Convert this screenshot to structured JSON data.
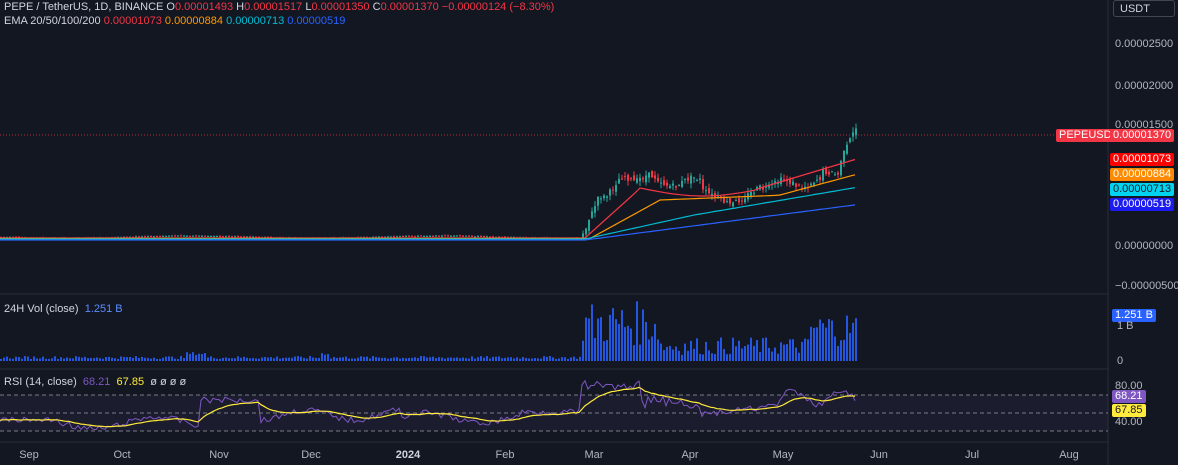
{
  "header": {
    "symbol": "PEPE / TetherUS, 1D, BINANCE",
    "o_label": "O",
    "o_value": "0.00001493",
    "h_label": "H",
    "h_value": "0.00001517",
    "l_label": "L",
    "l_value": "0.00001350",
    "c_label": "C",
    "c_value": "0.00001370",
    "change": "−0.00000124 (−8.30%)",
    "ema_label": "EMA 20/50/100/200",
    "ema20": "0.00001073",
    "ema50": "0.00000884",
    "ema100": "0.00000713",
    "ema200": "0.00000519"
  },
  "currency_button": "USDT",
  "price_axis": {
    "ticks": [
      "0.00002500",
      "0.00002000",
      "0.00001500",
      "0.00000000",
      "−0.00000500"
    ],
    "symbol_tag": "PEPEUSDT",
    "last_price_tag": "0.00001370",
    "ema20_tag": "0.00001073",
    "ema50_tag": "0.00000884",
    "ema100_tag": "0.00000713",
    "ema200_tag": "0.00000519"
  },
  "volume_pane": {
    "title": "24H Vol (close)",
    "value": "1.251 B",
    "tag": "1.251 B",
    "tick_1b": "1 B",
    "tick_0": "0"
  },
  "rsi_pane": {
    "title": "RSI (14, close)",
    "rsi": "68.21",
    "ma": "67.85",
    "extra": "ø ø ø ø",
    "tick_80": "80.00",
    "tick_40": "40.00",
    "rsi_tag": "68.21",
    "ma_tag": "67.85"
  },
  "time_axis": [
    "Sep",
    "Oct",
    "Nov",
    "Dec",
    "2024",
    "Feb",
    "Mar",
    "Apr",
    "May",
    "Jun",
    "Jul",
    "Aug"
  ],
  "colors": {
    "background": "#131722",
    "up": "#26a69a",
    "down": "#f23645",
    "ema20": "#f23645",
    "ema50": "#ff9800",
    "ema100": "#00bcd4",
    "ema200": "#2962ff",
    "volume": "#2962ff",
    "rsi": "#7e57c2",
    "rsi_ma": "#ffeb3b"
  },
  "chart_data": {
    "type": "candlestick",
    "title": "PEPE / TetherUS, 1D, BINANCE",
    "price_ylim": [
      -5e-06,
      3e-05
    ],
    "last_close": 1.37e-05,
    "ema": {
      "ema20": 1.073e-05,
      "ema50": 8.84e-06,
      "ema100": 7.13e-06,
      "ema200": 5.19e-06
    },
    "volume_last": 1251000000,
    "rsi_last": 68.21,
    "rsi_ma_last": 67.85,
    "x_months": [
      "Sep",
      "Oct",
      "Nov",
      "Dec",
      "2024",
      "Feb",
      "Mar",
      "Apr",
      "May",
      "Jun",
      "Jul",
      "Aug"
    ]
  }
}
